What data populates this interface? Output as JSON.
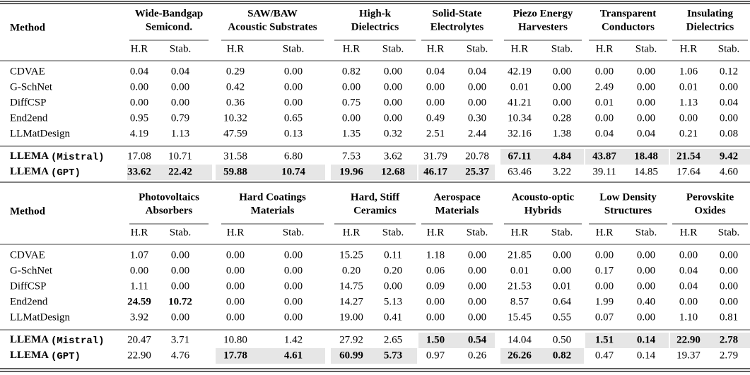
{
  "tables": [
    {
      "method_label": "Method",
      "subheaders": [
        "H.R",
        "Stab."
      ],
      "groups": [
        [
          "Wide-Bandgap",
          "Semicond."
        ],
        [
          "SAW/BAW",
          "Acoustic Substrates"
        ],
        [
          "High-k",
          "Dielectrics"
        ],
        [
          "Solid-State",
          "Electrolytes"
        ],
        [
          "Piezo Energy",
          "Harvesters"
        ],
        [
          "Transparent",
          "Conductors"
        ],
        [
          "Insulating",
          "Dielectrics"
        ]
      ],
      "rows": [
        {
          "method": "CDVAE",
          "values": [
            "0.04",
            "0.04",
            "0.29",
            "0.00",
            "0.82",
            "0.00",
            "0.04",
            "0.04",
            "42.19",
            "0.00",
            "0.00",
            "0.00",
            "1.06",
            "0.12"
          ]
        },
        {
          "method": "G-SchNet",
          "values": [
            "0.00",
            "0.00",
            "0.42",
            "0.00",
            "0.00",
            "0.00",
            "0.00",
            "0.00",
            "0.01",
            "0.00",
            "2.49",
            "0.00",
            "0.01",
            "0.00"
          ]
        },
        {
          "method": "DiffCSP",
          "values": [
            "0.00",
            "0.00",
            "0.36",
            "0.00",
            "0.75",
            "0.00",
            "0.00",
            "0.00",
            "41.21",
            "0.00",
            "0.01",
            "0.00",
            "1.13",
            "0.04"
          ]
        },
        {
          "method": "End2end",
          "values": [
            "0.95",
            "0.79",
            "10.32",
            "0.65",
            "0.00",
            "0.00",
            "0.49",
            "0.30",
            "10.34",
            "0.28",
            "0.00",
            "0.00",
            "0.00",
            "0.00"
          ]
        },
        {
          "method": "LLMatDesign",
          "values": [
            "4.19",
            "1.13",
            "47.59",
            "0.13",
            "1.35",
            "0.32",
            "2.51",
            "2.44",
            "32.16",
            "1.38",
            "0.04",
            "0.04",
            "0.21",
            "0.08"
          ]
        },
        {
          "method": "LLEMA (Mistral)",
          "values": [
            "17.08",
            "10.71",
            "31.58",
            "6.80",
            "7.53",
            "3.62",
            "31.79",
            "20.78",
            "67.11",
            "4.84",
            "43.87",
            "18.48",
            "21.54",
            "9.42"
          ],
          "bold": [
            8,
            9,
            10,
            11,
            12,
            13
          ],
          "shaded": [
            8,
            9,
            10,
            11,
            12,
            13
          ]
        },
        {
          "method": "LLEMA (GPT)",
          "values": [
            "33.62",
            "22.42",
            "59.88",
            "10.74",
            "19.96",
            "12.68",
            "46.17",
            "25.37",
            "63.46",
            "3.22",
            "39.11",
            "14.85",
            "17.64",
            "4.60"
          ],
          "bold": [
            0,
            1,
            2,
            3,
            4,
            5,
            6,
            7
          ],
          "shaded": [
            0,
            1,
            2,
            3,
            4,
            5,
            6,
            7
          ]
        }
      ]
    },
    {
      "method_label": "Method",
      "subheaders": [
        "H.R",
        "Stab."
      ],
      "groups": [
        [
          "Photovoltaics",
          "Absorbers"
        ],
        [
          "Hard Coatings",
          "Materials"
        ],
        [
          "Hard, Stiff",
          "Ceramics"
        ],
        [
          "Aerospace",
          "Materials"
        ],
        [
          "Acousto-optic",
          "Hybrids"
        ],
        [
          "Low Density",
          "Structures"
        ],
        [
          "Perovskite",
          "Oxides"
        ]
      ],
      "rows": [
        {
          "method": "CDVAE",
          "values": [
            "1.07",
            "0.00",
            "0.00",
            "0.00",
            "15.25",
            "0.11",
            "1.18",
            "0.00",
            "21.85",
            "0.00",
            "0.00",
            "0.00",
            "0.00",
            "0.00"
          ]
        },
        {
          "method": "G-SchNet",
          "values": [
            "0.00",
            "0.00",
            "0.00",
            "0.00",
            "0.20",
            "0.20",
            "0.06",
            "0.00",
            "0.01",
            "0.00",
            "0.17",
            "0.00",
            "0.04",
            "0.00"
          ]
        },
        {
          "method": "DiffCSP",
          "values": [
            "1.11",
            "0.00",
            "0.00",
            "0.00",
            "14.75",
            "0.00",
            "0.09",
            "0.00",
            "21.53",
            "0.01",
            "0.00",
            "0.00",
            "0.04",
            "0.00"
          ]
        },
        {
          "method": "End2end",
          "values": [
            "24.59",
            "10.72",
            "0.00",
            "0.00",
            "14.27",
            "5.13",
            "0.00",
            "0.00",
            "8.57",
            "0.64",
            "1.99",
            "0.40",
            "0.00",
            "0.00"
          ],
          "bold": [
            0,
            1
          ]
        },
        {
          "method": "LLMatDesign",
          "values": [
            "3.92",
            "0.00",
            "0.00",
            "0.00",
            "19.00",
            "0.41",
            "0.00",
            "0.00",
            "15.45",
            "0.55",
            "0.07",
            "0.00",
            "1.10",
            "0.81"
          ]
        },
        {
          "method": "LLEMA (Mistral)",
          "values": [
            "20.47",
            "3.71",
            "10.80",
            "1.42",
            "27.92",
            "2.65",
            "1.50",
            "0.54",
            "14.04",
            "0.50",
            "1.51",
            "0.14",
            "22.90",
            "2.78"
          ],
          "bold": [
            6,
            7,
            10,
            11,
            12,
            13
          ],
          "shaded": [
            6,
            7,
            10,
            11,
            12,
            13
          ]
        },
        {
          "method": "LLEMA (GPT)",
          "values": [
            "22.90",
            "4.76",
            "17.78",
            "4.61",
            "60.99",
            "5.73",
            "0.97",
            "0.26",
            "26.26",
            "0.82",
            "0.47",
            "0.14",
            "19.37",
            "2.79"
          ],
          "bold": [
            2,
            3,
            4,
            5,
            8,
            9
          ],
          "shaded": [
            2,
            3,
            4,
            5,
            8,
            9
          ]
        }
      ]
    }
  ]
}
